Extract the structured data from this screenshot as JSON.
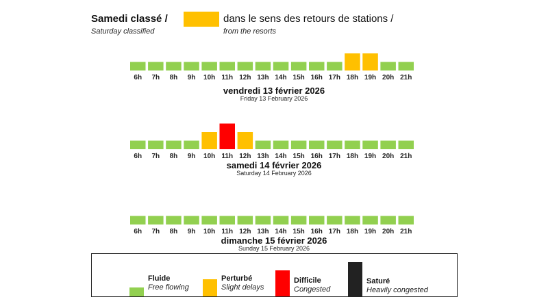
{
  "header": {
    "title_fr": "Samedi classé /",
    "title_en": "Saturday classified",
    "direction_fr": "dans le sens des retours de stations /",
    "direction_en": "from the resorts",
    "swatch_color": "#FFC000"
  },
  "colors": {
    "fluide": "#92D050",
    "perturbe": "#FFC000",
    "difficile": "#FF0000",
    "sature": "#222222"
  },
  "chart_data": [
    {
      "type": "bar",
      "title": "vendredi 13 février 2026",
      "subtitle": "Friday 13 February 2026",
      "categories": [
        "6h",
        "7h",
        "8h",
        "9h",
        "10h",
        "11h",
        "12h",
        "13h",
        "14h",
        "15h",
        "16h",
        "17h",
        "18h",
        "19h",
        "20h",
        "21h"
      ],
      "levels": [
        "fluide",
        "fluide",
        "fluide",
        "fluide",
        "fluide",
        "fluide",
        "fluide",
        "fluide",
        "fluide",
        "fluide",
        "fluide",
        "fluide",
        "perturbe",
        "perturbe",
        "fluide",
        "fluide"
      ],
      "values": [
        1,
        1,
        1,
        1,
        1,
        1,
        1,
        1,
        1,
        1,
        1,
        1,
        2,
        2,
        1,
        1
      ]
    },
    {
      "type": "bar",
      "title": "samedi 14 février 2026",
      "subtitle": "Saturday 14 February 2026",
      "categories": [
        "6h",
        "7h",
        "8h",
        "9h",
        "10h",
        "11h",
        "12h",
        "13h",
        "14h",
        "15h",
        "16h",
        "17h",
        "18h",
        "19h",
        "20h",
        "21h"
      ],
      "levels": [
        "fluide",
        "fluide",
        "fluide",
        "fluide",
        "perturbe",
        "difficile",
        "perturbe",
        "fluide",
        "fluide",
        "fluide",
        "fluide",
        "fluide",
        "fluide",
        "fluide",
        "fluide",
        "fluide"
      ],
      "values": [
        1,
        1,
        1,
        1,
        2,
        3,
        2,
        1,
        1,
        1,
        1,
        1,
        1,
        1,
        1,
        1
      ]
    },
    {
      "type": "bar",
      "title": "dimanche 15 février 2026",
      "subtitle": "Sunday 15 February 2026",
      "categories": [
        "6h",
        "7h",
        "8h",
        "9h",
        "10h",
        "11h",
        "12h",
        "13h",
        "14h",
        "15h",
        "16h",
        "17h",
        "18h",
        "19h",
        "20h",
        "21h"
      ],
      "levels": [
        "fluide",
        "fluide",
        "fluide",
        "fluide",
        "fluide",
        "fluide",
        "fluide",
        "fluide",
        "fluide",
        "fluide",
        "fluide",
        "fluide",
        "fluide",
        "fluide",
        "fluide",
        "fluide"
      ],
      "values": [
        1,
        1,
        1,
        1,
        1,
        1,
        1,
        1,
        1,
        1,
        1,
        1,
        1,
        1,
        1,
        1
      ]
    }
  ],
  "legend": {
    "items": [
      {
        "label_fr": "Fluide",
        "label_en": "Free flowing",
        "level": "fluide",
        "value": 1
      },
      {
        "label_fr": "Perturbé",
        "label_en": "Slight delays",
        "level": "perturbe",
        "value": 2
      },
      {
        "label_fr": "Difficile",
        "label_en": "Congested",
        "level": "difficile",
        "value": 3
      },
      {
        "label_fr": "Saturé",
        "label_en": "Heavily congested",
        "level": "sature",
        "value": 4
      }
    ]
  }
}
